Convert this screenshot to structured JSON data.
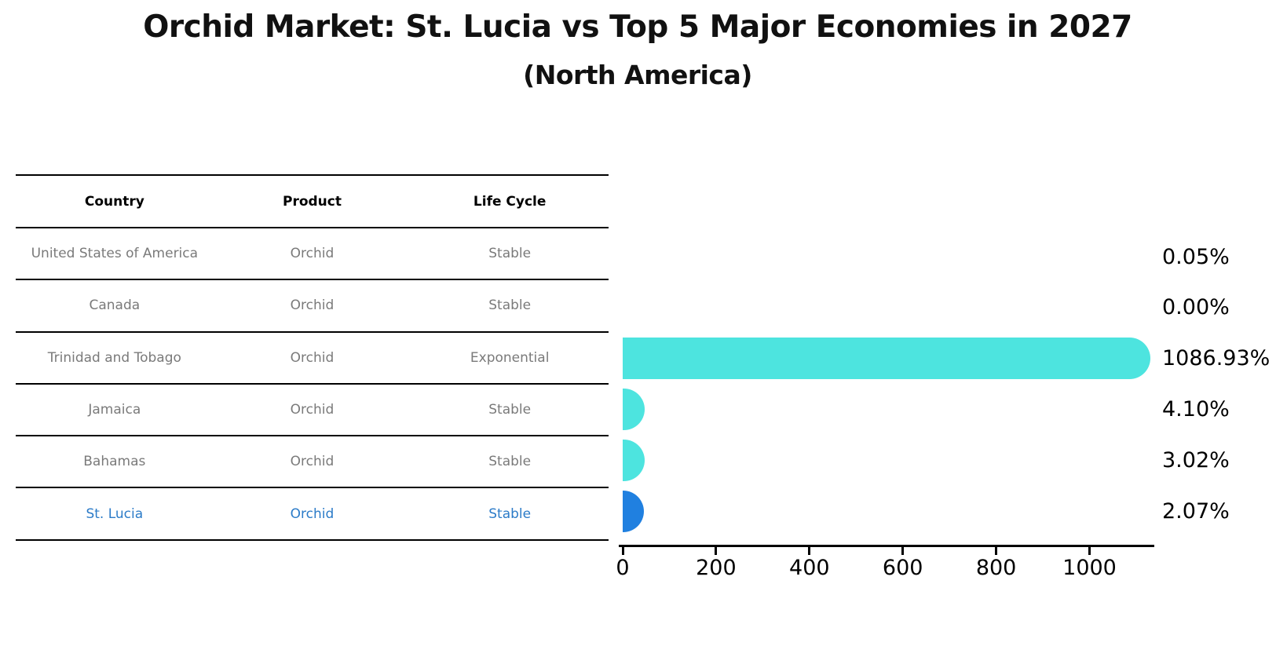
{
  "title": "Orchid Market: St. Lucia vs Top 5 Major Economies in 2027",
  "subtitle": "(North America)",
  "table": {
    "columns": [
      "Country",
      "Product",
      "Life Cycle"
    ],
    "rows": [
      {
        "country": "United States of America",
        "product": "Orchid",
        "life_cycle": "Stable",
        "highlighted": false
      },
      {
        "country": "Canada",
        "product": "Orchid",
        "life_cycle": "Stable",
        "highlighted": false
      },
      {
        "country": "Trinidad and Tobago",
        "product": "Orchid",
        "life_cycle": "Exponential",
        "highlighted": false
      },
      {
        "country": "Jamaica",
        "product": "Orchid",
        "life_cycle": "Stable",
        "highlighted": false
      },
      {
        "country": "Bahamas",
        "product": "Orchid",
        "life_cycle": "Stable",
        "highlighted": false
      },
      {
        "country": "St. Lucia",
        "product": "Orchid",
        "life_cycle": "Stable",
        "highlighted": true
      }
    ]
  },
  "chart_data": {
    "type": "bar",
    "orientation": "horizontal",
    "title": "Orchid Market: St. Lucia vs Top 5 Major Economies in 2027",
    "subtitle": "(North America)",
    "categories": [
      "United States of America",
      "Canada",
      "Trinidad and Tobago",
      "Jamaica",
      "Bahamas",
      "St. Lucia"
    ],
    "values": [
      0.05,
      0.0,
      1086.93,
      4.1,
      3.02,
      2.07
    ],
    "value_labels": [
      "0.05%",
      "0.00%",
      "1086.93%",
      "4.10%",
      "3.02%",
      "2.07%"
    ],
    "unit": "percent",
    "x_ticks": [
      "0",
      "200",
      "400",
      "600",
      "800",
      "1000"
    ],
    "x_tick_values": [
      0,
      200,
      400,
      600,
      800,
      1000
    ],
    "xlim": [
      0,
      1140
    ],
    "grid": false,
    "legend": false,
    "bar_color": "#4DE4DF",
    "highlight_color": "#2080E0",
    "highlight_index": 5,
    "highlight_text_color": "#2b7bc8"
  }
}
